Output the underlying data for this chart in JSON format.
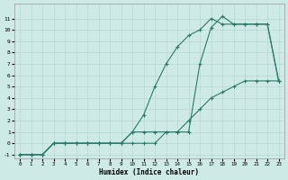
{
  "xlabel": "Humidex (Indice chaleur)",
  "bg_color": "#ceeae6",
  "grid_color": "#b8d8d4",
  "line_color": "#2a7a6a",
  "xlim": [
    0,
    23
  ],
  "ylim": [
    -1,
    12
  ],
  "xticks": [
    0,
    1,
    2,
    3,
    4,
    5,
    6,
    7,
    8,
    9,
    10,
    11,
    12,
    13,
    14,
    15,
    16,
    17,
    18,
    19,
    20,
    21,
    22,
    23
  ],
  "yticks": [
    -1,
    0,
    1,
    2,
    3,
    4,
    5,
    6,
    7,
    8,
    9,
    10,
    11
  ],
  "line1_x": [
    0,
    1,
    2,
    3,
    4,
    5,
    6,
    7,
    8,
    9,
    10,
    11,
    12,
    13,
    14,
    15,
    16,
    17,
    18,
    19,
    20,
    21,
    22,
    23
  ],
  "line1_y": [
    -1,
    -1,
    -1,
    0,
    0,
    0,
    0,
    0,
    0,
    0,
    1,
    1,
    1,
    1,
    1,
    1,
    7,
    10.2,
    11.2,
    10.5,
    10.5,
    10.5,
    10.5,
    5.5
  ],
  "line2_x": [
    0,
    1,
    2,
    3,
    4,
    5,
    6,
    7,
    8,
    9,
    10,
    11,
    12,
    13,
    14,
    15,
    16,
    17,
    18,
    19,
    20,
    21,
    22,
    23
  ],
  "line2_y": [
    -1,
    -1,
    -1,
    0,
    0,
    0,
    0,
    0,
    0,
    0,
    1,
    2.5,
    5,
    7,
    8.5,
    9.5,
    10,
    11,
    10.5,
    10.5,
    10.5,
    10.5,
    10.5,
    5.5
  ],
  "line3_x": [
    0,
    1,
    2,
    3,
    4,
    5,
    6,
    7,
    8,
    9,
    10,
    11,
    12,
    13,
    14,
    15,
    16,
    17,
    18,
    19,
    20,
    21,
    22,
    23
  ],
  "line3_y": [
    -1,
    -1,
    -1,
    0,
    0,
    0,
    0,
    0,
    0,
    0,
    0,
    0,
    0,
    1,
    1,
    2,
    3,
    4,
    4.5,
    5,
    5.5,
    5.5,
    5.5,
    5.5
  ]
}
